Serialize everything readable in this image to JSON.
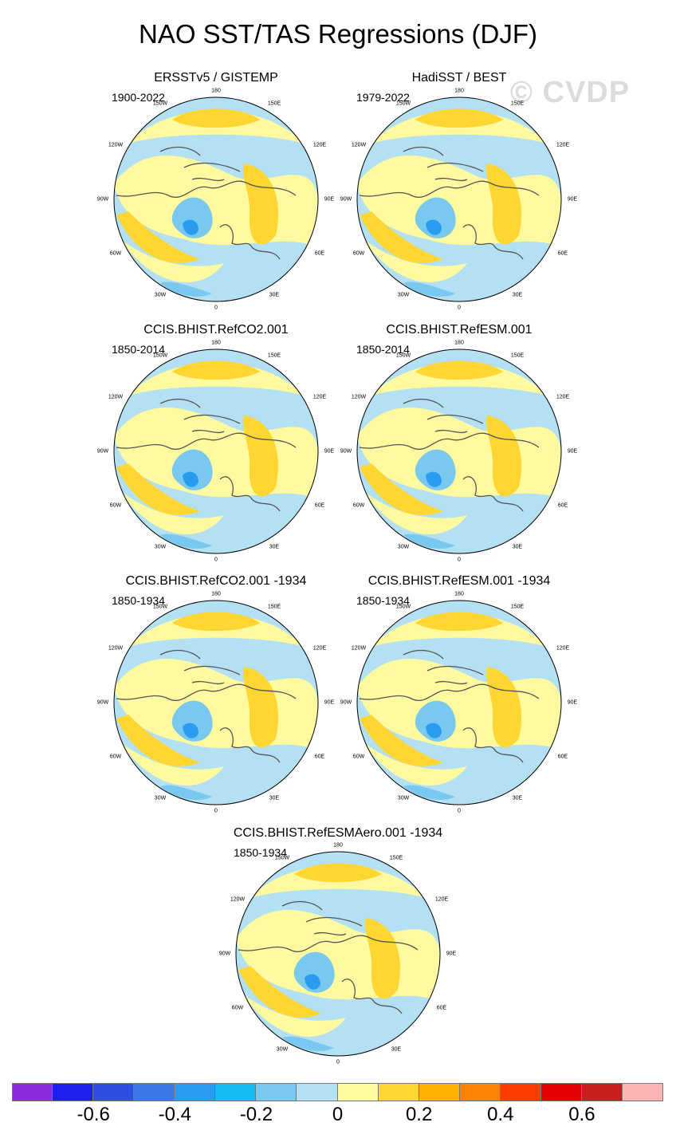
{
  "title": "NAO SST/TAS Regressions (DJF)",
  "watermark": "© CVDP",
  "lon_labels": {
    "top": "180",
    "bottom": "0",
    "ul1": "150W",
    "ul2": "120W",
    "l": "90W",
    "ll1": "60W",
    "ll2": "30W",
    "ur1": "150E",
    "ur2": "120E",
    "r": "90E",
    "lr1": "60E",
    "lr2": "30E"
  },
  "panels": [
    {
      "title": "ERSSTv5 / GISTEMP",
      "period": "1900-2022"
    },
    {
      "title": "HadiSST / BEST",
      "period": "1979-2022"
    },
    {
      "title": "CCIS.BHIST.RefCO2.001",
      "period": "1850-2014"
    },
    {
      "title": "CCIS.BHIST.RefESM.001",
      "period": "1850-2014"
    },
    {
      "title": "CCIS.BHIST.RefCO2.001 -1934",
      "period": "1850-1934"
    },
    {
      "title": "CCIS.BHIST.RefESM.001 -1934",
      "period": "1850-1934"
    },
    {
      "title": "CCIS.BHIST.RefESMAero.001 -1934",
      "period": "1850-1934"
    }
  ],
  "colorbar": {
    "colors": [
      "#8a2be2",
      "#1e1ef0",
      "#2e4ee0",
      "#3a78e8",
      "#2a9cf0",
      "#12bcf4",
      "#78c8f0",
      "#b4e0f4",
      "#fffaa0",
      "#ffd632",
      "#ffb000",
      "#ff8200",
      "#ff3c00",
      "#e60000",
      "#c81e1e",
      "#ffb4b4"
    ],
    "labels": [
      "-0.6",
      "-0.4",
      "-0.2",
      "0",
      "0.2",
      "0.4",
      "0.6"
    ]
  },
  "colors": {
    "ocean_neutral": "#b4e0f4",
    "warm_light": "#fffaa0",
    "warm_med": "#ffd632",
    "warm_strong": "#ffb000",
    "cool_med": "#78c8f0",
    "cool_strong": "#2a9cf0",
    "coast": "#555555"
  }
}
